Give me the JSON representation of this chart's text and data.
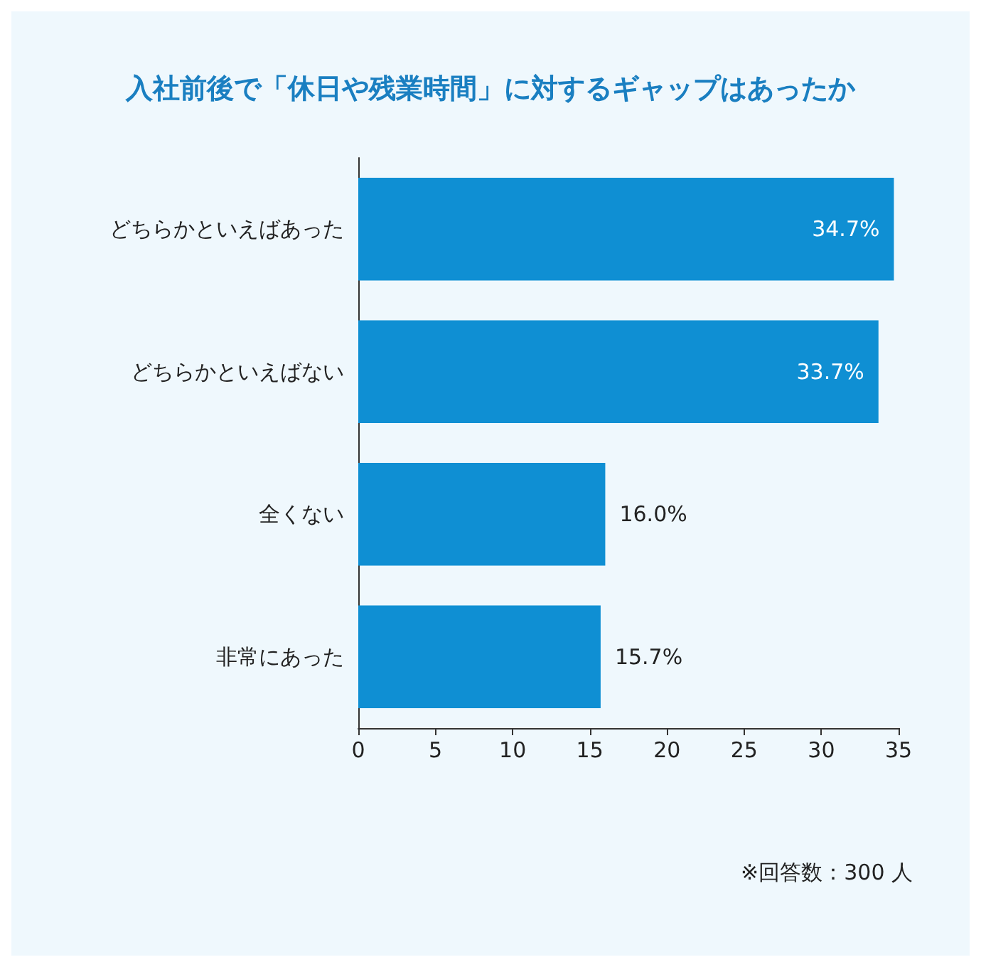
{
  "chart_data": {
    "type": "bar",
    "orientation": "horizontal",
    "title": "入社前後で「休日や残業時間」に対するギャップはあったか",
    "categories": [
      "どちらかといえばあった",
      "どちらかといえばない",
      "全くない",
      "非常にあった"
    ],
    "values": [
      34.7,
      33.7,
      16.0,
      15.7
    ],
    "value_labels": [
      "34.7%",
      "33.7%",
      "16.0%",
      "15.7%"
    ],
    "color": "#0f8fd3",
    "xlim": [
      0,
      35
    ],
    "xticks": [
      0,
      5,
      10,
      15,
      20,
      25,
      30,
      35
    ],
    "grid": false,
    "annotations": [
      "※回答数：300 人"
    ]
  }
}
